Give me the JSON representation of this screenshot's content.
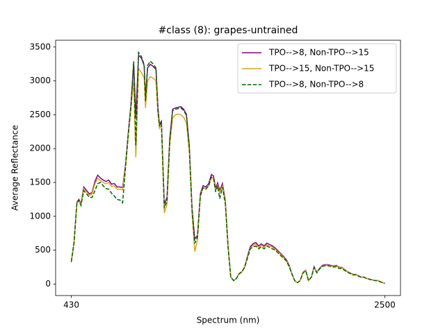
{
  "chart_data": {
    "type": "line",
    "title": "#class (8): grapes-untrained",
    "xlabel": "Spectrum (nm)",
    "ylabel": "Average Reflectance",
    "x": [
      430,
      448,
      467,
      480,
      494,
      512,
      531,
      549,
      567,
      586,
      604,
      622,
      641,
      659,
      677,
      696,
      714,
      732,
      751,
      769,
      787,
      806,
      824,
      842,
      856,
      874,
      893,
      911,
      920,
      934,
      952,
      970,
      989,
      1002,
      1012,
      1025,
      1044,
      1062,
      1080,
      1099,
      1117,
      1135,
      1154,
      1172,
      1190,
      1209,
      1227,
      1245,
      1263,
      1282,
      1300,
      1318,
      1337,
      1355,
      1369,
      1383,
      1396,
      1410,
      1428,
      1447,
      1465,
      1483,
      1502,
      1520,
      1538,
      1557,
      1575,
      1593,
      1612,
      1630,
      1648,
      1667,
      1685,
      1703,
      1721,
      1740,
      1758,
      1776,
      1795,
      1813,
      1831,
      1850,
      1868,
      1886,
      1905,
      1923,
      1941,
      1960,
      1978,
      1996,
      2015,
      2033,
      2051,
      2070,
      2088,
      2106,
      2125,
      2143,
      2161,
      2180,
      2198,
      2216,
      2235,
      2253,
      2271,
      2289,
      2308,
      2326,
      2344,
      2363,
      2381,
      2399,
      2418,
      2436,
      2454,
      2473,
      2500
    ],
    "series": [
      {
        "name": "TPO-->8, Non-TPO-->15",
        "color": "#800080",
        "linestyle": "solid",
        "values": [
          328,
          614,
          1208,
          1250,
          1180,
          1433,
          1382,
          1330,
          1351,
          1515,
          1607,
          1566,
          1535,
          1515,
          1535,
          1474,
          1484,
          1433,
          1433,
          1423,
          1740,
          2231,
          2661,
          3275,
          2456,
          3378,
          3337,
          3224,
          2764,
          3193,
          3245,
          3214,
          3173,
          2610,
          2354,
          2405,
          1177,
          1280,
          2149,
          2580,
          2600,
          2610,
          2620,
          2580,
          2507,
          2047,
          1126,
          665,
          716,
          1330,
          1453,
          1433,
          1484,
          1617,
          1596,
          1412,
          1494,
          1382,
          1484,
          1228,
          563,
          102,
          51,
          82,
          154,
          184,
          256,
          409,
          553,
          594,
          614,
          563,
          594,
          563,
          604,
          583,
          563,
          532,
          491,
          450,
          409,
          358,
          276,
          154,
          51,
          20,
          51,
          174,
          205,
          51,
          102,
          256,
          174,
          235,
          276,
          286,
          286,
          276,
          266,
          276,
          246,
          246,
          215,
          184,
          164,
          143,
          143,
          123,
          102,
          102,
          82,
          72,
          61,
          51,
          51,
          31,
          10
        ]
      },
      {
        "name": "TPO-->15, Non-TPO-->15",
        "color": "#daa520",
        "linestyle": "solid",
        "values": [
          320,
          600,
          1190,
          1230,
          1170,
          1410,
          1360,
          1310,
          1330,
          1480,
          1560,
          1530,
          1500,
          1480,
          1500,
          1440,
          1450,
          1400,
          1400,
          1390,
          1700,
          2180,
          2600,
          3000,
          1870,
          3180,
          3120,
          3050,
          2600,
          3000,
          3060,
          3040,
          3000,
          2520,
          2300,
          2350,
          1050,
          1180,
          2050,
          2450,
          2500,
          2510,
          2500,
          2460,
          2380,
          1950,
          1050,
          480,
          650,
          1300,
          1420,
          1410,
          1450,
          1580,
          1560,
          1380,
          1460,
          1350,
          1450,
          1200,
          540,
          100,
          50,
          80,
          150,
          180,
          250,
          390,
          530,
          570,
          590,
          540,
          570,
          545,
          580,
          560,
          545,
          515,
          475,
          435,
          395,
          345,
          265,
          150,
          50,
          20,
          50,
          170,
          200,
          50,
          100,
          248,
          170,
          228,
          268,
          278,
          278,
          268,
          258,
          268,
          240,
          240,
          210,
          180,
          160,
          140,
          140,
          120,
          100,
          100,
          80,
          70,
          60,
          50,
          50,
          30,
          10
        ]
      },
      {
        "name": "TPO-->8, Non-TPO-->8",
        "color": "#006400",
        "linestyle": "dashed",
        "values": [
          330,
          610,
          1200,
          1240,
          1160,
          1380,
          1330,
          1280,
          1280,
          1380,
          1480,
          1500,
          1450,
          1410,
          1400,
          1340,
          1300,
          1250,
          1240,
          1200,
          1700,
          2200,
          2620,
          3290,
          2050,
          3420,
          3360,
          3240,
          2700,
          3230,
          3290,
          3250,
          3190,
          2560,
          2340,
          2390,
          1120,
          1230,
          2120,
          2560,
          2580,
          2590,
          2600,
          2560,
          2490,
          2020,
          1100,
          600,
          690,
          1300,
          1420,
          1400,
          1450,
          1580,
          1560,
          1360,
          1450,
          1260,
          1430,
          1180,
          540,
          100,
          50,
          80,
          150,
          180,
          250,
          380,
          520,
          550,
          560,
          520,
          550,
          520,
          560,
          540,
          520,
          500,
          460,
          420,
          380,
          340,
          260,
          150,
          50,
          20,
          50,
          165,
          195,
          50,
          100,
          245,
          165,
          225,
          260,
          270,
          270,
          260,
          250,
          255,
          230,
          230,
          200,
          175,
          155,
          135,
          135,
          115,
          100,
          100,
          80,
          70,
          60,
          50,
          50,
          30,
          10
        ]
      }
    ],
    "xlim": [
      326.5,
      2603.5
    ],
    "xticks": [
      430,
      2500
    ],
    "ylim": [
      -170,
      3600
    ],
    "yticks": [
      0,
      500,
      1000,
      1500,
      2000,
      2500,
      3000,
      3500
    ],
    "grid": false,
    "legend": "upper right"
  }
}
